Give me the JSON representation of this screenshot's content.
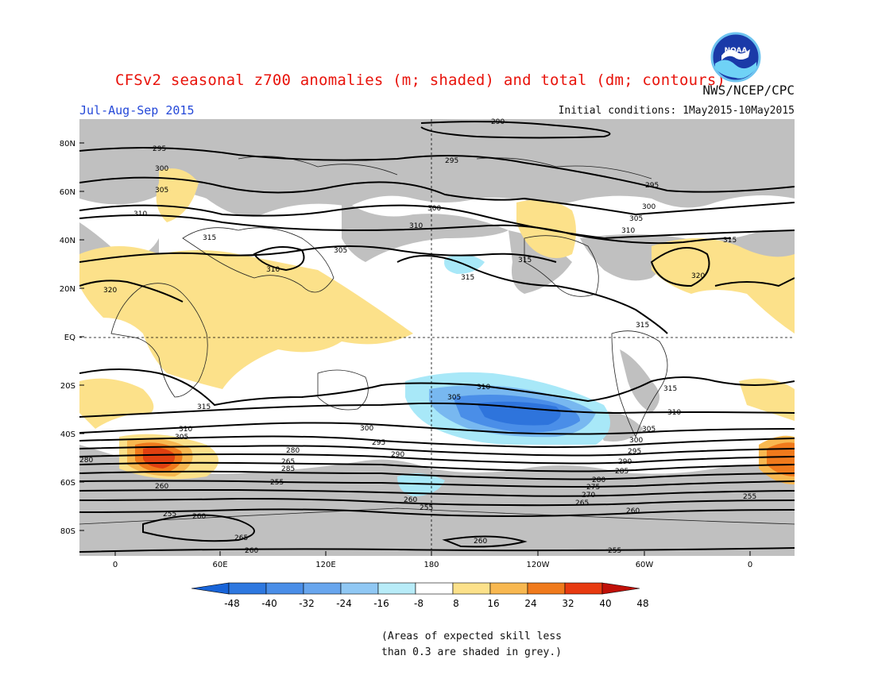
{
  "header": {
    "title": "CFSv2 seasonal z700 anomalies (m; shaded) and total (dm; contours)",
    "season": "Jul-Aug-Sep 2015",
    "initial_conditions": "Initial conditions: 1May2015-10May2015",
    "agency": "NWS/NCEP/CPC",
    "logo_text": "NOAA"
  },
  "map": {
    "lat_labels": [
      "80N",
      "60N",
      "40N",
      "20N",
      "EQ",
      "20S",
      "40S",
      "60S",
      "80S"
    ],
    "lon_labels": [
      "0",
      "60E",
      "120E",
      "180",
      "120W",
      "60W",
      "0"
    ],
    "contour_labels": [
      "290",
      "295",
      "295",
      "300",
      "305",
      "310",
      "315",
      "320",
      "310",
      "305",
      "300",
      "295",
      "315",
      "310",
      "300",
      "305",
      "310",
      "315",
      "315",
      "320",
      "315",
      "310",
      "315",
      "305",
      "310",
      "305",
      "300",
      "295",
      "290",
      "285",
      "280",
      "275",
      "270",
      "265",
      "260",
      "255",
      "255",
      "260",
      "265",
      "255",
      "260",
      "265",
      "260",
      "260",
      "255",
      "280",
      "285",
      "290",
      "295",
      "300",
      "305",
      "310",
      "315",
      "280",
      "260",
      "255"
    ],
    "colors": {
      "grey": "#c0c0c0",
      "neg_light": "#a8e8f8",
      "neg_mid": "#78b8f0",
      "neg_strong": "#4a8ee8",
      "neg_darker": "#2e74dc",
      "pos_light": "#fce18a",
      "pos_mid": "#f8b850",
      "pos_strong": "#f07a1c",
      "pos_darker": "#e04010",
      "pos_max": "#c01008"
    }
  },
  "colorbar": {
    "labels": [
      "-48",
      "-40",
      "-32",
      "-24",
      "-16",
      "-8",
      "8",
      "16",
      "24",
      "32",
      "40",
      "48"
    ],
    "colors": [
      "#1864d8",
      "#2e78e0",
      "#4a8ee8",
      "#68a6ee",
      "#90c8f4",
      "#b8ecf8",
      "#ffffff",
      "#fce18a",
      "#f8b850",
      "#f07a1c",
      "#e83a10",
      "#c01008"
    ]
  },
  "note": {
    "line1": "(Areas of expected skill less",
    "line2": "than 0.3 are shaded in grey.)"
  }
}
